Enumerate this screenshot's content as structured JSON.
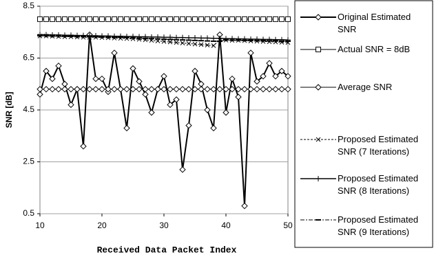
{
  "chart_data": {
    "type": "line",
    "x_label": "Received Data Packet Index",
    "y_label": "SNR [dB]",
    "x": [
      10,
      11,
      12,
      13,
      14,
      15,
      16,
      17,
      18,
      19,
      20,
      21,
      22,
      23,
      24,
      25,
      26,
      27,
      28,
      29,
      30,
      31,
      32,
      33,
      34,
      35,
      36,
      37,
      38,
      39,
      40,
      41,
      42,
      43,
      44,
      45,
      46,
      47,
      48,
      49,
      50
    ],
    "xlim": [
      10,
      50
    ],
    "xticks": [
      10,
      20,
      30,
      40,
      50
    ],
    "ylim": [
      0.5,
      8.5
    ],
    "yticks": [
      0.5,
      2.5,
      4.5,
      6.5,
      8.5
    ],
    "grid": true,
    "series": [
      {
        "name": "Original Estimated SNR",
        "color": "#000000",
        "marker": "diamond",
        "dash": "none",
        "width": 2,
        "values": [
          5.1,
          6.0,
          5.7,
          6.2,
          5.5,
          4.7,
          5.3,
          3.1,
          7.4,
          5.7,
          5.7,
          5.2,
          6.7,
          5.3,
          3.8,
          6.1,
          5.6,
          5.1,
          4.4,
          5.3,
          5.8,
          4.7,
          4.9,
          2.2,
          3.9,
          6.0,
          5.5,
          4.5,
          3.8,
          7.4,
          4.4,
          5.7,
          5.0,
          0.8,
          6.7,
          5.6,
          5.8,
          6.3,
          5.8,
          6.0,
          5.8
        ]
      },
      {
        "name": "Actual SNR = 8dB",
        "color": "#000000",
        "marker": "square",
        "dash": "none",
        "width": 1,
        "values": [
          8,
          8,
          8,
          8,
          8,
          8,
          8,
          8,
          8,
          8,
          8,
          8,
          8,
          8,
          8,
          8,
          8,
          8,
          8,
          8,
          8,
          8,
          8,
          8,
          8,
          8,
          8,
          8,
          8,
          8,
          8,
          8,
          8,
          8,
          8,
          8,
          8,
          8,
          8,
          8,
          8
        ]
      },
      {
        "name": "Average SNR",
        "color": "#000000",
        "marker": "diamond",
        "dash": "none",
        "width": 1,
        "values": [
          5.3,
          5.3,
          5.3,
          5.3,
          5.3,
          5.3,
          5.3,
          5.3,
          5.3,
          5.3,
          5.3,
          5.3,
          5.3,
          5.3,
          5.3,
          5.3,
          5.3,
          5.3,
          5.3,
          5.3,
          5.3,
          5.3,
          5.3,
          5.3,
          5.3,
          5.3,
          5.3,
          5.3,
          5.3,
          5.3,
          5.3,
          5.3,
          5.3,
          5.3,
          5.3,
          5.3,
          5.3,
          5.3,
          5.3,
          5.3,
          5.3
        ]
      },
      {
        "name": "Proposed Estimated SNR (7 Iterations)",
        "color": "#000000",
        "marker": "x",
        "dash": "3 2",
        "width": 1,
        "values": [
          7.35,
          7.35,
          7.34,
          7.33,
          7.32,
          7.32,
          7.31,
          7.3,
          7.3,
          7.3,
          7.29,
          7.28,
          7.27,
          7.26,
          7.25,
          7.24,
          7.22,
          7.2,
          7.18,
          7.16,
          7.14,
          7.12,
          7.1,
          7.08,
          7.06,
          7.04,
          7.02,
          7.0,
          6.98,
          7.2,
          7.19,
          7.18,
          7.18,
          7.17,
          7.16,
          7.15,
          7.14,
          7.13,
          7.12,
          7.11,
          7.1
        ]
      },
      {
        "name": "Proposed Estimated SNR (8 Iterations)",
        "color": "#000000",
        "marker": "plus",
        "dash": "none",
        "width": 1.5,
        "values": [
          7.4,
          7.4,
          7.39,
          7.39,
          7.38,
          7.38,
          7.37,
          7.37,
          7.36,
          7.36,
          7.35,
          7.35,
          7.34,
          7.34,
          7.33,
          7.33,
          7.32,
          7.32,
          7.31,
          7.31,
          7.3,
          7.3,
          7.29,
          7.29,
          7.28,
          7.28,
          7.27,
          7.27,
          7.26,
          7.26,
          7.25,
          7.25,
          7.24,
          7.24,
          7.23,
          7.23,
          7.22,
          7.22,
          7.21,
          7.21,
          7.2
        ]
      },
      {
        "name": "Proposed Estimated SNR (9 Iterations)",
        "color": "#000000",
        "marker": "dash",
        "dash": "6 2 2 2",
        "width": 1,
        "values": [
          7.36,
          7.36,
          7.35,
          7.35,
          7.34,
          7.34,
          7.33,
          7.33,
          7.32,
          7.32,
          7.31,
          7.31,
          7.3,
          7.3,
          7.29,
          7.28,
          7.27,
          7.26,
          7.25,
          7.24,
          7.23,
          7.22,
          7.21,
          7.2,
          7.19,
          7.18,
          7.17,
          7.16,
          7.15,
          7.15,
          7.2,
          7.19,
          7.19,
          7.18,
          7.18,
          7.17,
          7.17,
          7.16,
          7.16,
          7.15,
          7.15
        ]
      }
    ]
  }
}
